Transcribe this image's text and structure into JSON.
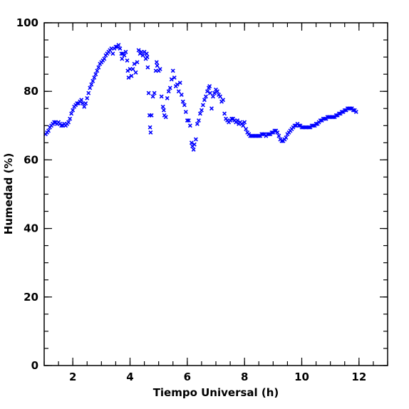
{
  "chart_data": {
    "type": "scatter",
    "title": "",
    "xlabel": "Tiempo Universal (h)",
    "ylabel": "Humedad (%)",
    "xlim": [
      1,
      13
    ],
    "ylim": [
      0,
      100
    ],
    "x_ticks": [
      2,
      4,
      6,
      8,
      10,
      12
    ],
    "y_ticks": [
      0,
      20,
      40,
      60,
      80,
      100
    ],
    "x_minor_step": 0.5,
    "y_minor_step": 5,
    "marker": "x",
    "color": "#0000ff",
    "grid": false,
    "series": [
      {
        "points": [
          [
            1.05,
            67.5
          ],
          [
            1.1,
            68.0
          ],
          [
            1.15,
            68.5
          ],
          [
            1.2,
            69.5
          ],
          [
            1.25,
            70.0
          ],
          [
            1.3,
            70.5
          ],
          [
            1.35,
            71.0
          ],
          [
            1.4,
            71.0
          ],
          [
            1.45,
            70.5
          ],
          [
            1.5,
            71.0
          ],
          [
            1.55,
            70.5
          ],
          [
            1.6,
            70.0
          ],
          [
            1.65,
            70.0
          ],
          [
            1.7,
            70.5
          ],
          [
            1.75,
            70.0
          ],
          [
            1.8,
            70.5
          ],
          [
            1.85,
            71.0
          ],
          [
            1.9,
            72.0
          ],
          [
            1.95,
            73.5
          ],
          [
            2.0,
            74.5
          ],
          [
            2.05,
            75.5
          ],
          [
            2.1,
            76.0
          ],
          [
            2.15,
            76.5
          ],
          [
            2.2,
            76.5
          ],
          [
            2.25,
            77.0
          ],
          [
            2.3,
            77.5
          ],
          [
            2.35,
            76.5
          ],
          [
            2.4,
            75.5
          ],
          [
            2.45,
            76.5
          ],
          [
            2.5,
            78.0
          ],
          [
            2.55,
            79.5
          ],
          [
            2.6,
            81.0
          ],
          [
            2.65,
            82.0
          ],
          [
            2.7,
            83.0
          ],
          [
            2.75,
            84.0
          ],
          [
            2.8,
            85.0
          ],
          [
            2.85,
            86.0
          ],
          [
            2.9,
            87.0
          ],
          [
            2.95,
            88.0
          ],
          [
            3.0,
            88.5
          ],
          [
            3.05,
            89.0
          ],
          [
            3.1,
            89.5
          ],
          [
            3.15,
            90.5
          ],
          [
            3.2,
            91.0
          ],
          [
            3.25,
            91.5
          ],
          [
            3.3,
            92.0
          ],
          [
            3.35,
            92.5
          ],
          [
            3.4,
            91.0
          ],
          [
            3.45,
            92.5
          ],
          [
            3.5,
            93.0
          ],
          [
            3.55,
            93.0
          ],
          [
            3.6,
            93.5
          ],
          [
            3.65,
            92.5
          ],
          [
            3.7,
            91.0
          ],
          [
            3.72,
            89.5
          ],
          [
            3.75,
            91.0
          ],
          [
            3.8,
            90.5
          ],
          [
            3.85,
            91.5
          ],
          [
            3.9,
            89.0
          ],
          [
            3.92,
            86.0
          ],
          [
            3.95,
            84.0
          ],
          [
            4.0,
            86.5
          ],
          [
            4.05,
            84.5
          ],
          [
            4.1,
            86.5
          ],
          [
            4.15,
            88.0
          ],
          [
            4.2,
            85.5
          ],
          [
            4.25,
            88.5
          ],
          [
            4.3,
            92.0
          ],
          [
            4.35,
            91.0
          ],
          [
            4.4,
            91.5
          ],
          [
            4.45,
            90.5
          ],
          [
            4.5,
            91.5
          ],
          [
            4.55,
            89.5
          ],
          [
            4.58,
            91.0
          ],
          [
            4.6,
            90.0
          ],
          [
            4.62,
            87.0
          ],
          [
            4.65,
            79.5
          ],
          [
            4.68,
            73.0
          ],
          [
            4.7,
            69.5
          ],
          [
            4.72,
            68.0
          ],
          [
            4.75,
            73.0
          ],
          [
            4.8,
            78.5
          ],
          [
            4.85,
            79.5
          ],
          [
            4.9,
            86.0
          ],
          [
            4.93,
            88.5
          ],
          [
            4.95,
            87.5
          ],
          [
            5.0,
            86.0
          ],
          [
            5.05,
            86.5
          ],
          [
            5.1,
            78.5
          ],
          [
            5.15,
            75.5
          ],
          [
            5.18,
            74.5
          ],
          [
            5.2,
            73.0
          ],
          [
            5.25,
            72.5
          ],
          [
            5.3,
            78.0
          ],
          [
            5.35,
            80.0
          ],
          [
            5.4,
            81.0
          ],
          [
            5.45,
            83.5
          ],
          [
            5.5,
            86.0
          ],
          [
            5.55,
            84.0
          ],
          [
            5.6,
            81.5
          ],
          [
            5.65,
            82.0
          ],
          [
            5.7,
            80.0
          ],
          [
            5.75,
            82.5
          ],
          [
            5.8,
            79.0
          ],
          [
            5.85,
            77.0
          ],
          [
            5.9,
            76.0
          ],
          [
            5.95,
            74.0
          ],
          [
            6.0,
            71.5
          ],
          [
            6.05,
            71.5
          ],
          [
            6.1,
            70.0
          ],
          [
            6.15,
            65.0
          ],
          [
            6.18,
            64.0
          ],
          [
            6.22,
            63.0
          ],
          [
            6.25,
            64.5
          ],
          [
            6.3,
            66.0
          ],
          [
            6.35,
            70.5
          ],
          [
            6.4,
            71.5
          ],
          [
            6.45,
            73.5
          ],
          [
            6.5,
            74.5
          ],
          [
            6.55,
            76.0
          ],
          [
            6.6,
            77.5
          ],
          [
            6.65,
            78.5
          ],
          [
            6.7,
            80.0
          ],
          [
            6.75,
            81.0
          ],
          [
            6.78,
            81.5
          ],
          [
            6.8,
            79.5
          ],
          [
            6.85,
            75.0
          ],
          [
            6.9,
            78.5
          ],
          [
            6.95,
            79.5
          ],
          [
            7.0,
            80.5
          ],
          [
            7.05,
            80.0
          ],
          [
            7.1,
            79.0
          ],
          [
            7.15,
            78.5
          ],
          [
            7.2,
            77.0
          ],
          [
            7.25,
            77.5
          ],
          [
            7.3,
            73.5
          ],
          [
            7.35,
            72.0
          ],
          [
            7.4,
            71.5
          ],
          [
            7.45,
            71.0
          ],
          [
            7.5,
            71.5
          ],
          [
            7.55,
            72.0
          ],
          [
            7.6,
            72.0
          ],
          [
            7.65,
            71.5
          ],
          [
            7.7,
            71.0
          ],
          [
            7.75,
            71.5
          ],
          [
            7.8,
            70.5
          ],
          [
            7.85,
            71.0
          ],
          [
            7.9,
            70.5
          ],
          [
            7.95,
            70.0
          ],
          [
            8.0,
            71.0
          ],
          [
            8.05,
            69.0
          ],
          [
            8.1,
            68.0
          ],
          [
            8.15,
            67.5
          ],
          [
            8.2,
            67.0
          ],
          [
            8.25,
            67.0
          ],
          [
            8.3,
            67.0
          ],
          [
            8.35,
            67.0
          ],
          [
            8.4,
            67.0
          ],
          [
            8.45,
            67.0
          ],
          [
            8.5,
            67.0
          ],
          [
            8.55,
            67.0
          ],
          [
            8.6,
            67.5
          ],
          [
            8.65,
            67.5
          ],
          [
            8.7,
            67.5
          ],
          [
            8.75,
            67.0
          ],
          [
            8.8,
            67.5
          ],
          [
            8.85,
            67.5
          ],
          [
            8.9,
            67.5
          ],
          [
            8.95,
            68.0
          ],
          [
            9.0,
            68.0
          ],
          [
            9.05,
            68.5
          ],
          [
            9.1,
            68.5
          ],
          [
            9.15,
            68.0
          ],
          [
            9.2,
            67.0
          ],
          [
            9.25,
            66.0
          ],
          [
            9.3,
            65.5
          ],
          [
            9.35,
            65.5
          ],
          [
            9.4,
            66.0
          ],
          [
            9.45,
            66.5
          ],
          [
            9.5,
            67.5
          ],
          [
            9.55,
            68.0
          ],
          [
            9.6,
            68.5
          ],
          [
            9.65,
            69.0
          ],
          [
            9.7,
            69.5
          ],
          [
            9.75,
            70.0
          ],
          [
            9.8,
            70.0
          ],
          [
            9.85,
            70.5
          ],
          [
            9.9,
            70.0
          ],
          [
            9.95,
            70.0
          ],
          [
            10.0,
            69.5
          ],
          [
            10.05,
            69.5
          ],
          [
            10.1,
            69.5
          ],
          [
            10.15,
            69.5
          ],
          [
            10.2,
            69.5
          ],
          [
            10.25,
            69.5
          ],
          [
            10.3,
            69.5
          ],
          [
            10.35,
            70.0
          ],
          [
            10.4,
            70.0
          ],
          [
            10.45,
            70.0
          ],
          [
            10.5,
            70.5
          ],
          [
            10.55,
            70.5
          ],
          [
            10.6,
            71.0
          ],
          [
            10.65,
            71.5
          ],
          [
            10.7,
            71.5
          ],
          [
            10.75,
            72.0
          ],
          [
            10.8,
            72.0
          ],
          [
            10.85,
            72.0
          ],
          [
            10.9,
            72.5
          ],
          [
            10.95,
            72.5
          ],
          [
            11.0,
            72.5
          ],
          [
            11.05,
            72.5
          ],
          [
            11.1,
            72.5
          ],
          [
            11.15,
            72.5
          ],
          [
            11.2,
            73.0
          ],
          [
            11.25,
            73.0
          ],
          [
            11.3,
            73.5
          ],
          [
            11.35,
            73.5
          ],
          [
            11.4,
            74.0
          ],
          [
            11.45,
            74.0
          ],
          [
            11.5,
            74.5
          ],
          [
            11.55,
            74.5
          ],
          [
            11.6,
            75.0
          ],
          [
            11.65,
            75.0
          ],
          [
            11.7,
            75.0
          ],
          [
            11.75,
            75.0
          ],
          [
            11.8,
            74.5
          ],
          [
            11.85,
            74.5
          ],
          [
            11.9,
            74.0
          ]
        ]
      }
    ]
  }
}
